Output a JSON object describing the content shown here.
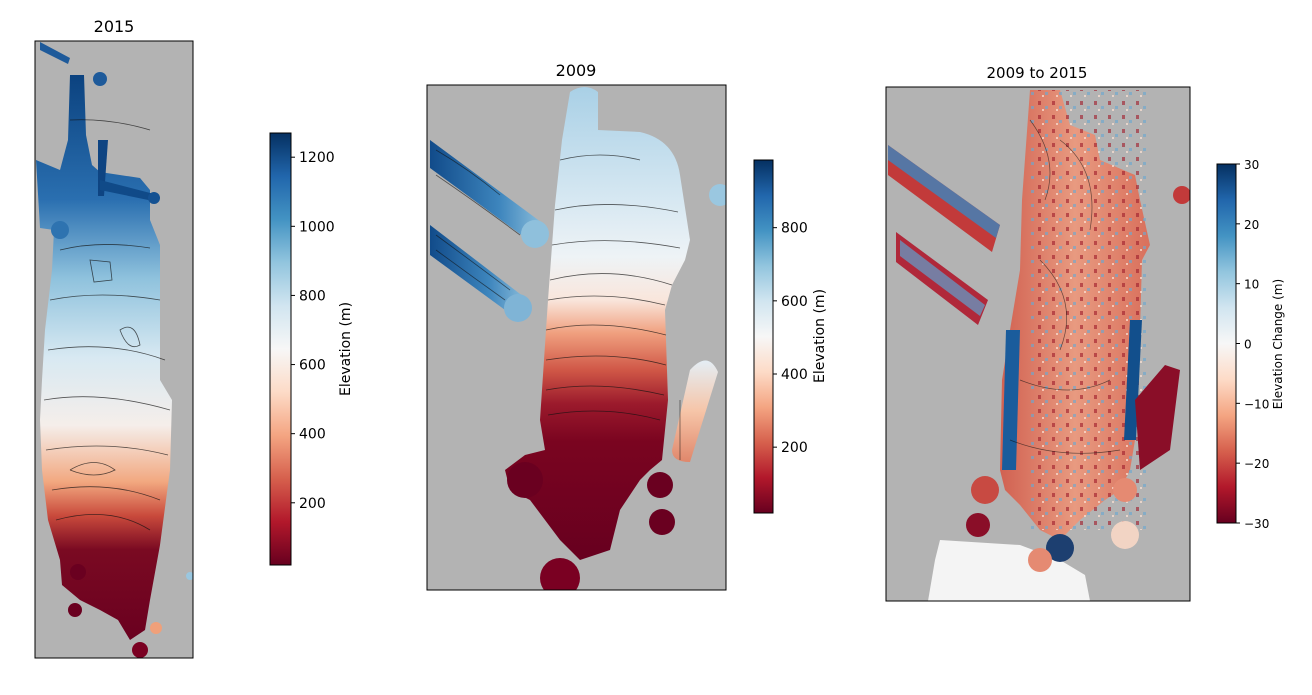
{
  "chart_data": [
    {
      "type": "heatmap",
      "title": "2015",
      "colormap": "RdBu",
      "no_data_color": "#b3b3b3",
      "axes_ticks_visible": false,
      "colorbar": {
        "label": "Elevation (m)",
        "range": [
          20,
          1270
        ],
        "ticks": [
          200,
          400,
          600,
          800,
          1000,
          1200
        ]
      }
    },
    {
      "type": "heatmap",
      "title": "2009",
      "colormap": "RdBu",
      "no_data_color": "#b3b3b3",
      "axes_ticks_visible": false,
      "colorbar": {
        "label": "Elevation (m)",
        "range": [
          20,
          985
        ],
        "ticks": [
          200,
          400,
          600,
          800
        ]
      }
    },
    {
      "type": "heatmap",
      "title": "2009 to 2015",
      "colormap": "RdBu",
      "no_data_color": "#b3b3b3",
      "axes_ticks_visible": false,
      "colorbar": {
        "label": "Elevation Change (m)",
        "range": [
          -30,
          30
        ],
        "ticks": [
          30,
          20,
          10,
          0,
          -10,
          -20,
          -30
        ],
        "tick_labels": [
          "30",
          "20",
          "10",
          "0",
          "−10",
          "−20",
          "−30"
        ]
      }
    }
  ]
}
